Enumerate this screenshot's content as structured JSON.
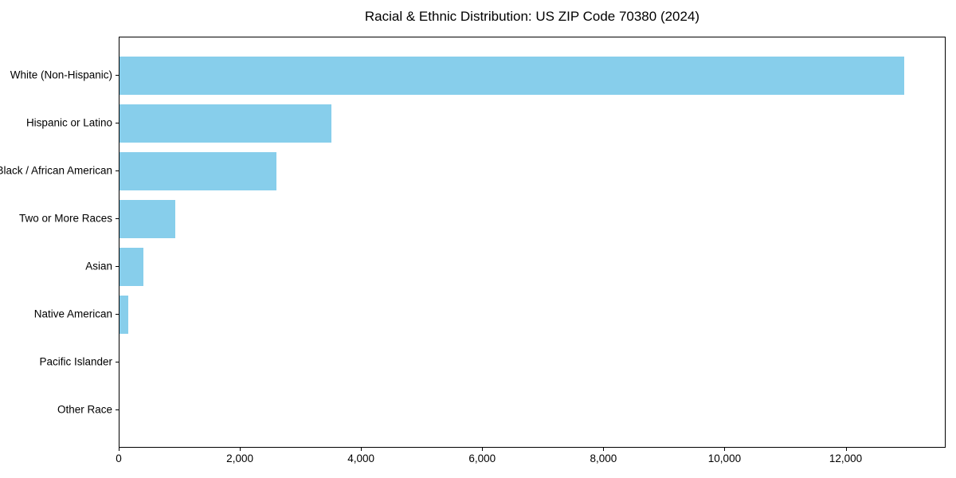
{
  "chart_data": {
    "type": "bar",
    "orientation": "horizontal",
    "title": "Racial & Ethnic Distribution: US ZIP Code 70380 (2024)",
    "xlabel": "",
    "ylabel": "",
    "categories": [
      "White (Non-Hispanic)",
      "Hispanic or Latino",
      "Black / African American",
      "Two or More Races",
      "Asian",
      "Native American",
      "Pacific Islander",
      "Other Race"
    ],
    "values": [
      12980,
      3500,
      2600,
      920,
      390,
      140,
      0,
      0
    ],
    "xlim": [
      0,
      13650
    ],
    "xticks": [
      {
        "value": 0,
        "label": "0"
      },
      {
        "value": 2000,
        "label": "2,000"
      },
      {
        "value": 4000,
        "label": "4,000"
      },
      {
        "value": 6000,
        "label": "6,000"
      },
      {
        "value": 8000,
        "label": "8,000"
      },
      {
        "value": 10000,
        "label": "10,000"
      },
      {
        "value": 12000,
        "label": "12,000"
      }
    ],
    "grid": false,
    "legend": null,
    "colors": {
      "bar": "#87CEEB",
      "text": "#000000",
      "spine": "#000000",
      "background": "#ffffff"
    }
  },
  "layout_note": "single horizontal bar chart, bars sorted descending top to bottom"
}
